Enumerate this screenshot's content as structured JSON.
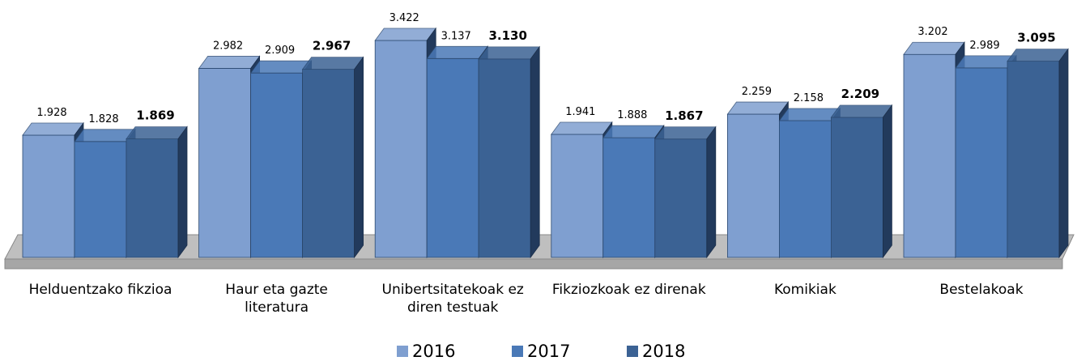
{
  "chart_data": {
    "type": "bar3d",
    "categories": [
      "Helduentzako fikzioa",
      "Haur eta gazte literatura",
      "Unibertsitatekoak ez diren testuak",
      "Fikziozkoak ez direnak",
      "Komikiak",
      "Bestelakoak"
    ],
    "series": [
      {
        "name": "2016",
        "color": "#7f9fd0",
        "values": [
          1928,
          2982,
          3422,
          1941,
          2259,
          3202
        ],
        "value_labels": [
          "1.928",
          "2.982",
          "3.422",
          "1.941",
          "2.259",
          "3.202"
        ]
      },
      {
        "name": "2017",
        "color": "#4a79b7",
        "values": [
          1828,
          2909,
          3137,
          1888,
          2158,
          2989
        ],
        "value_labels": [
          "1.828",
          "2.909",
          "3.137",
          "1.888",
          "2.158",
          "2.989"
        ]
      },
      {
        "name": "2018",
        "color": "#3b6294",
        "values": [
          1869,
          2967,
          3130,
          1867,
          2209,
          3095
        ],
        "value_labels": [
          "1.869",
          "2.967",
          "3.130",
          "1.867",
          "2.209",
          "3.095"
        ],
        "bold_labels": true
      }
    ]
  }
}
